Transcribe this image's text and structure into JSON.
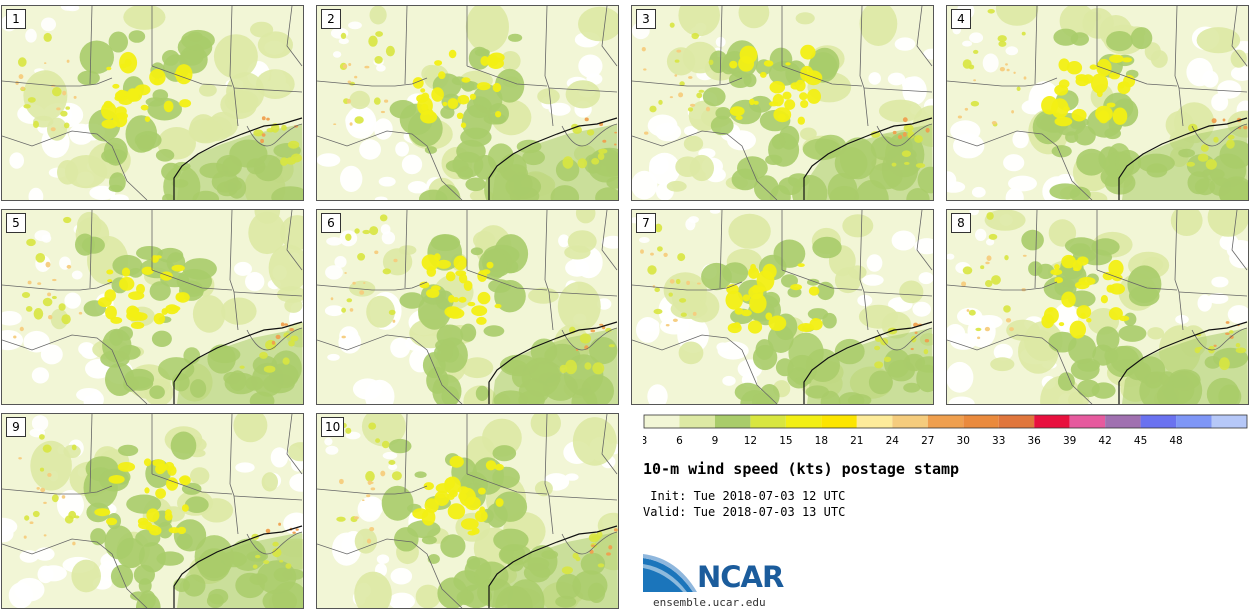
{
  "panels": [
    {
      "label": "1"
    },
    {
      "label": "2"
    },
    {
      "label": "3"
    },
    {
      "label": "4"
    },
    {
      "label": "5"
    },
    {
      "label": "6"
    },
    {
      "label": "7"
    },
    {
      "label": "8"
    },
    {
      "label": "9"
    },
    {
      "label": "10"
    }
  ],
  "colorbar": {
    "ticks": [
      "3",
      "6",
      "9",
      "12",
      "15",
      "18",
      "21",
      "24",
      "27",
      "30",
      "33",
      "36",
      "39",
      "42",
      "45",
      "48"
    ],
    "colors": [
      "#f2f6d6",
      "#dde9a4",
      "#a9cc6a",
      "#d8e640",
      "#f2ef14",
      "#fce500",
      "#fdeb9a",
      "#f5cc7d",
      "#ef9f4e",
      "#ea8a3d",
      "#e0763c",
      "#e8103e",
      "#e65a9e",
      "#a070b0",
      "#6a72f0",
      "#7e96f6",
      "#b6c8f8"
    ]
  },
  "title": "10-m wind speed (kts) postage stamp",
  "init": " Init: Tue 2018-07-03 12 UTC",
  "valid": "Valid: Tue 2018-07-03 13 UTC",
  "logo": {
    "name": "NCAR",
    "url": "ensemble.ucar.edu"
  }
}
